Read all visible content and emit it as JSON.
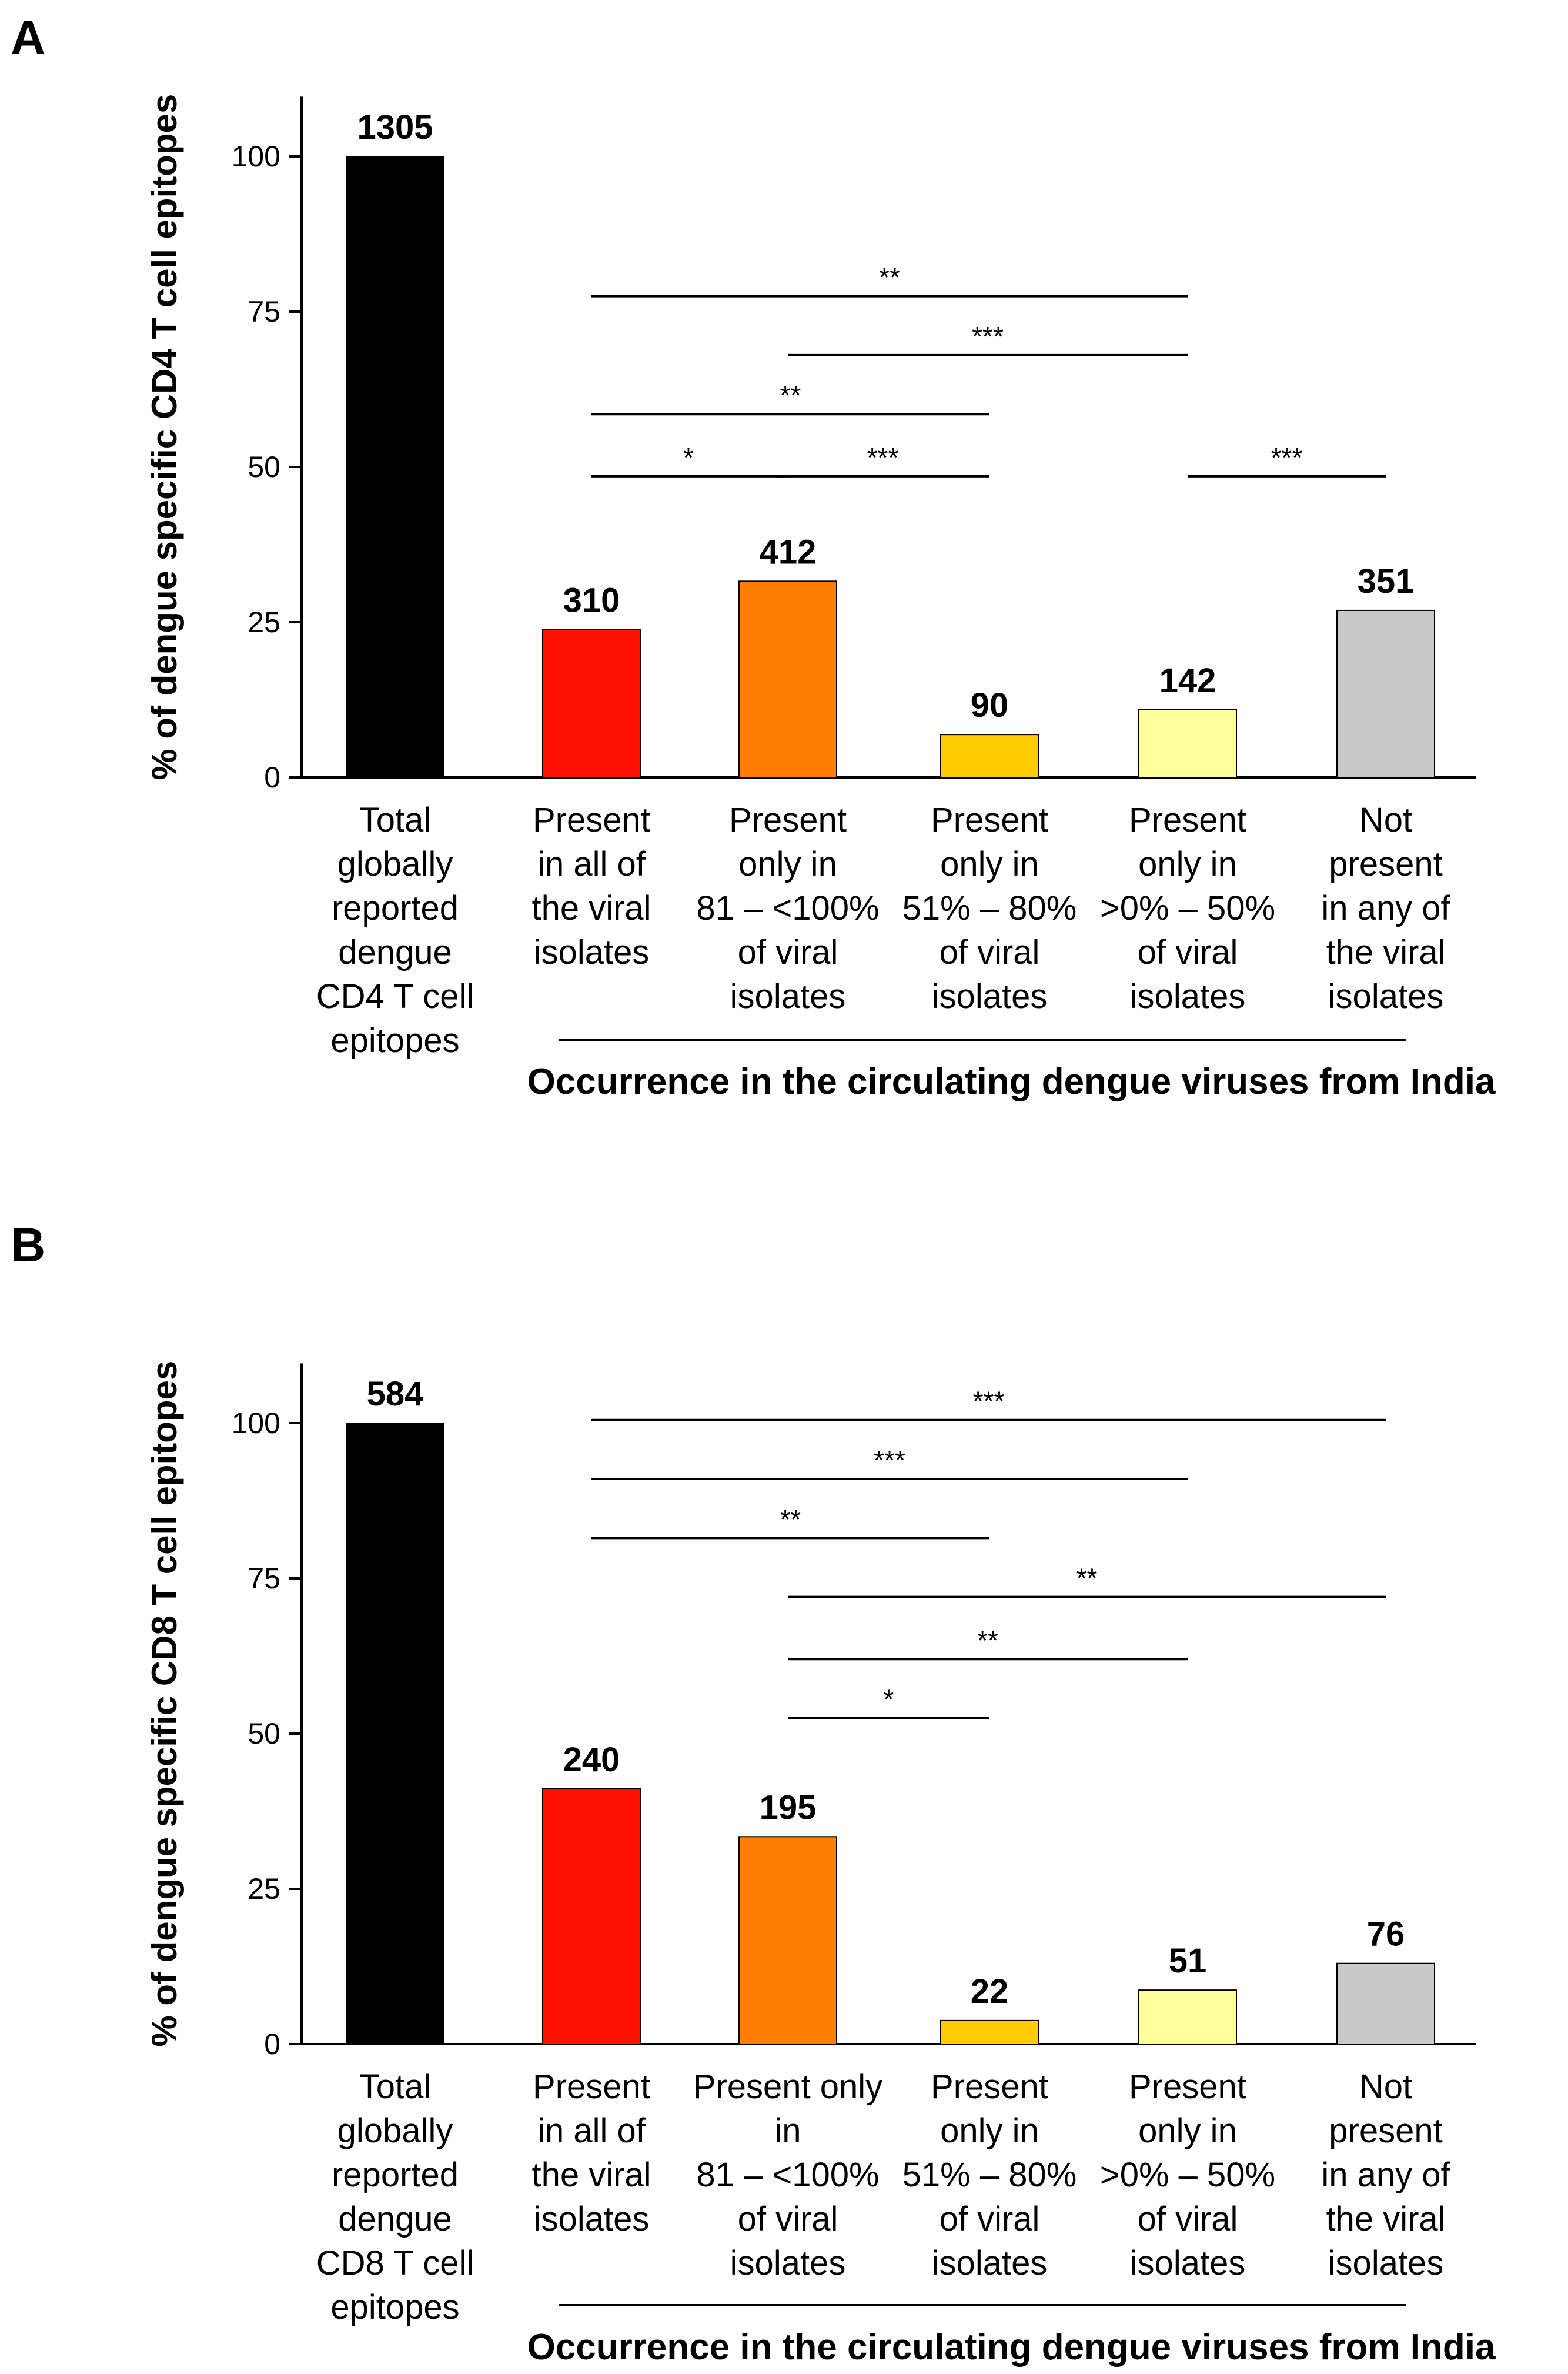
{
  "chart_data": [
    {
      "panel": "A",
      "type": "bar",
      "ylabel": "% of dengue specific CD4 T cell epitopes",
      "ylim": [
        0,
        110
      ],
      "yticks": [
        0,
        25,
        50,
        75,
        100
      ],
      "categories": [
        [
          "Total",
          "globally",
          "reported",
          "dengue",
          "CD4 T cell",
          "epitopes"
        ],
        [
          "Present",
          "in all of",
          "the viral",
          "isolates"
        ],
        [
          "Present",
          "only in",
          "81 – <100%",
          "of viral",
          "isolates"
        ],
        [
          "Present",
          "only in",
          "51% – 80%",
          "of viral",
          "isolates"
        ],
        [
          "Present",
          "only in",
          ">0% – 50%",
          "of viral",
          "isolates"
        ],
        [
          "Not",
          "present",
          "in any of",
          "the viral",
          "isolates"
        ]
      ],
      "values": [
        100,
        23.8,
        31.6,
        6.9,
        10.9,
        26.9
      ],
      "bar_labels": [
        "1305",
        "310",
        "412",
        "90",
        "142",
        "351"
      ],
      "colors": [
        "#000000",
        "#ff1100",
        "#ff8000",
        "#ffcc00",
        "#ffff99",
        "#c8c8c8"
      ],
      "group_label": "Occurrence in the circulating dengue viruses from India",
      "significance": [
        {
          "from": 1,
          "to": 4,
          "y": 77.5,
          "label": "**"
        },
        {
          "from": 2,
          "to": 4,
          "y": 68,
          "label": "***"
        },
        {
          "from": 1,
          "to": 3,
          "y": 58.5,
          "label": "**"
        },
        {
          "from": 1,
          "to": 2,
          "y": 48.5,
          "label": "*"
        },
        {
          "from": 2,
          "to": 3,
          "y": 48.5,
          "label": "***"
        },
        {
          "from": 4,
          "to": 5,
          "y": 48.5,
          "label": "***"
        }
      ]
    },
    {
      "panel": "B",
      "type": "bar",
      "ylabel": "% of dengue specific CD8 T cell epitopes",
      "ylim": [
        0,
        110
      ],
      "yticks": [
        0,
        25,
        50,
        75,
        100
      ],
      "categories": [
        [
          "Total",
          "globally",
          "reported",
          "dengue",
          "CD8 T cell",
          "epitopes"
        ],
        [
          "Present",
          "in all of",
          "the viral",
          "isolates"
        ],
        [
          "Present only",
          "in",
          "81 – <100%",
          "of viral",
          "isolates"
        ],
        [
          "Present",
          "only in",
          "51% – 80%",
          "of viral",
          "isolates"
        ],
        [
          "Present",
          "only in",
          ">0% – 50%",
          "of viral",
          "isolates"
        ],
        [
          "Not",
          "present",
          "in any of",
          "the viral",
          "isolates"
        ]
      ],
      "values": [
        100,
        41.1,
        33.4,
        3.8,
        8.7,
        13.0
      ],
      "bar_labels": [
        "584",
        "240",
        "195",
        "22",
        "51",
        "76"
      ],
      "colors": [
        "#000000",
        "#ff1100",
        "#ff8000",
        "#ffcc00",
        "#ffff99",
        "#c8c8c8"
      ],
      "group_label": "Occurrence in the circulating dengue viruses from India",
      "significance": [
        {
          "from": 1,
          "to": 5,
          "y": 100.5,
          "label": "***"
        },
        {
          "from": 1,
          "to": 4,
          "y": 91,
          "label": "***"
        },
        {
          "from": 1,
          "to": 3,
          "y": 81.5,
          "label": "**"
        },
        {
          "from": 2,
          "to": 5,
          "y": 72,
          "label": "**"
        },
        {
          "from": 2,
          "to": 4,
          "y": 62,
          "label": "**"
        },
        {
          "from": 2,
          "to": 3,
          "y": 52.5,
          "label": "*"
        }
      ]
    }
  ]
}
